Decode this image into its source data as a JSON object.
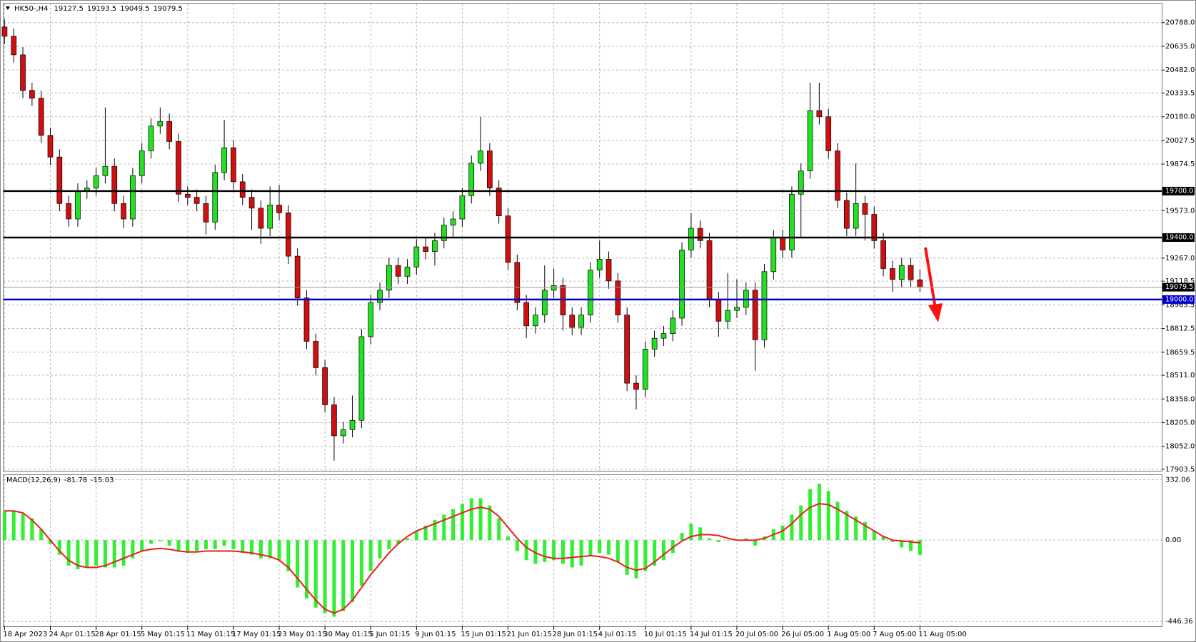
{
  "chart_data": [
    {
      "type": "candlestick",
      "title": "HK50-,H4",
      "categories": [
        "18 Apr 2023",
        null,
        null,
        null,
        null,
        "24 Apr 01:15",
        null,
        null,
        null,
        null,
        "28 Apr 01:15",
        null,
        null,
        null,
        null,
        "5 May 01:15",
        null,
        null,
        null,
        null,
        "11 May 01:15",
        null,
        null,
        null,
        null,
        "17 May 01:15",
        null,
        null,
        null,
        null,
        "23 May 01:15",
        null,
        null,
        null,
        null,
        "30 May 01:15",
        null,
        null,
        null,
        null,
        "5 Jun 01:15",
        null,
        null,
        null,
        null,
        "9 Jun 01:15",
        null,
        null,
        null,
        null,
        "15 Jun 01:15",
        null,
        null,
        null,
        null,
        "21 Jun 01:15",
        null,
        null,
        null,
        null,
        "28 Jun 01:15",
        null,
        null,
        null,
        null,
        "4 Jul 01:15",
        null,
        null,
        null,
        null,
        "10 Jul 01:15",
        null,
        null,
        null,
        null,
        "14 Jul 01:15",
        null,
        null,
        null,
        null,
        "20 Jul 05:00",
        null,
        null,
        null,
        null,
        "26 Jul 05:00",
        null,
        null,
        null,
        null,
        "1 Aug 05:00",
        null,
        null,
        null,
        null,
        "7 Aug 05:00",
        null,
        null,
        null,
        null,
        "11 Aug 05:00"
      ],
      "open": [
        20760,
        20700,
        20580,
        20350,
        20300,
        20060,
        19920,
        19620,
        19520,
        19700,
        19720,
        19800,
        19860,
        19620,
        19520,
        19800,
        19960,
        20120,
        20150,
        20020,
        19680,
        19660,
        19620,
        19500,
        19820,
        19980,
        19760,
        19660,
        19590,
        19460,
        19610,
        19560,
        19280,
        19010,
        18730,
        18560,
        18320,
        18120,
        18160,
        18220,
        18760,
        18980,
        19060,
        19220,
        19150,
        19210,
        19340,
        19310,
        19380,
        19480,
        19520,
        19670,
        19880,
        19960,
        19720,
        19540,
        19240,
        18980,
        18830,
        18900,
        19060,
        19090,
        18900,
        18820,
        18900,
        19190,
        19260,
        19120,
        18900,
        18460,
        18420,
        18680,
        18750,
        18780,
        18880,
        19320,
        19460,
        19380,
        19000,
        18860,
        18930,
        18950,
        19060,
        18740,
        19180,
        19400,
        19320,
        19680,
        19830,
        20220,
        20180,
        19960,
        19640,
        19460,
        19620,
        19550,
        19380,
        19200,
        19130,
        19220,
        19127.5
      ],
      "high": [
        20810,
        20750,
        20630,
        20400,
        20350,
        20110,
        19970,
        19670,
        19750,
        19770,
        19850,
        20240,
        19910,
        19670,
        19850,
        20010,
        20170,
        20240,
        20200,
        20070,
        19730,
        19710,
        19670,
        19870,
        20160,
        20030,
        19810,
        19710,
        19640,
        19730,
        19740,
        19610,
        19330,
        19060,
        18780,
        18610,
        18370,
        18210,
        18380,
        18810,
        19030,
        19110,
        19270,
        19270,
        19260,
        19390,
        19400,
        19430,
        19530,
        19570,
        19720,
        19930,
        20180,
        20010,
        19770,
        19590,
        19290,
        19030,
        18950,
        19220,
        19200,
        19140,
        18950,
        18950,
        19240,
        19380,
        19310,
        19170,
        18950,
        18510,
        18730,
        18800,
        18830,
        18930,
        19370,
        19560,
        19510,
        19430,
        19050,
        19170,
        19130,
        19110,
        19110,
        19230,
        19450,
        19450,
        19730,
        19880,
        20400,
        20400,
        20230,
        20010,
        19690,
        19880,
        19670,
        19600,
        19430,
        19250,
        19270,
        19270,
        19193.5
      ],
      "low": [
        20650,
        20530,
        20300,
        20250,
        20010,
        19870,
        19570,
        19470,
        19470,
        19650,
        19670,
        19750,
        19570,
        19460,
        19470,
        19750,
        19910,
        20070,
        19970,
        19630,
        19610,
        19570,
        19420,
        19450,
        19770,
        19710,
        19610,
        19450,
        19360,
        19410,
        19510,
        19230,
        18960,
        18680,
        18510,
        18270,
        17960,
        18070,
        18110,
        18170,
        18710,
        18930,
        19010,
        19100,
        19100,
        19160,
        19260,
        19220,
        19330,
        19400,
        19470,
        19620,
        19830,
        19670,
        19490,
        19190,
        18930,
        18750,
        18780,
        18850,
        19010,
        18800,
        18770,
        18770,
        18850,
        19140,
        19070,
        18850,
        18410,
        18290,
        18370,
        18630,
        18700,
        18730,
        18830,
        19270,
        19330,
        18950,
        18760,
        18810,
        18880,
        18900,
        18540,
        18690,
        19130,
        19270,
        19270,
        19400,
        19780,
        20130,
        19910,
        19590,
        19410,
        19410,
        19380,
        19330,
        19150,
        19050,
        19080,
        19080,
        19049.5
      ],
      "close": [
        20700,
        20580,
        20350,
        20300,
        20060,
        19920,
        19620,
        19520,
        19700,
        19720,
        19800,
        19860,
        19620,
        19520,
        19800,
        19960,
        20120,
        20150,
        20020,
        19680,
        19660,
        19620,
        19500,
        19820,
        19980,
        19760,
        19660,
        19590,
        19460,
        19610,
        19560,
        19280,
        19010,
        18730,
        18560,
        18320,
        18120,
        18160,
        18220,
        18760,
        18980,
        19060,
        19220,
        19150,
        19210,
        19340,
        19310,
        19380,
        19480,
        19520,
        19670,
        19880,
        19960,
        19720,
        19540,
        19240,
        18980,
        18830,
        18900,
        19060,
        19090,
        18900,
        18820,
        18900,
        19190,
        19260,
        19120,
        18900,
        18460,
        18420,
        18680,
        18750,
        18780,
        18880,
        19320,
        19460,
        19380,
        19000,
        18860,
        18930,
        18950,
        19060,
        18740,
        19180,
        19400,
        19320,
        19680,
        19830,
        20220,
        20180,
        19960,
        19640,
        19460,
        19620,
        19550,
        19380,
        19200,
        19130,
        19220,
        19127.5,
        19079.5
      ],
      "ylim": [
        17894,
        20911
      ],
      "yticks": [
        {
          "value": 20788,
          "label": "20788.0"
        },
        {
          "value": 20635,
          "label": "20635.0"
        },
        {
          "value": 20482,
          "label": "20482.0"
        },
        20333.5,
        {
          "value": 20180,
          "label": "20180.0"
        },
        20027.5,
        19874.5,
        {
          "value": 19573,
          "label": "19573.0"
        },
        {
          "value": 19267,
          "label": "19267.0"
        },
        19118.5,
        18965.5,
        18812.5,
        18659.5,
        {
          "value": 18511,
          "label": "18511.0"
        },
        {
          "value": 18358,
          "label": "18358.0"
        },
        {
          "value": 18205,
          "label": "18205.0"
        },
        {
          "value": 18052,
          "label": "18052.0"
        },
        17903.5
      ],
      "levels": [
        {
          "value": 19700,
          "label": "19700.0",
          "color": "#000000"
        },
        {
          "value": 19400,
          "label": "19400.0",
          "color": "#000000"
        },
        {
          "value": 19000,
          "label": "19000.0",
          "color": "#0000c8"
        }
      ],
      "current_price": 19079.5,
      "up_color": "#22e022",
      "down_color": "#d01010",
      "grid": true
    },
    {
      "type": "macd",
      "title": "MACD(12,26,9)",
      "histogram": [
        160,
        160,
        145,
        120,
        60,
        -20,
        -80,
        -140,
        -160,
        -150,
        -140,
        -150,
        -150,
        -140,
        -100,
        -60,
        -20,
        -5,
        -30,
        -60,
        -70,
        -60,
        -50,
        -50,
        -30,
        -50,
        -70,
        -80,
        -100,
        -100,
        -110,
        -170,
        -260,
        -320,
        -370,
        -400,
        -420,
        -390,
        -340,
        -250,
        -170,
        -100,
        -50,
        -20,
        10,
        50,
        80,
        110,
        140,
        170,
        200,
        230,
        230,
        190,
        120,
        20,
        -60,
        -110,
        -130,
        -120,
        -110,
        -130,
        -150,
        -140,
        -90,
        -70,
        -80,
        -120,
        -190,
        -210,
        -170,
        -140,
        -110,
        -70,
        40,
        90,
        70,
        10,
        -10,
        0,
        0,
        10,
        -30,
        20,
        60,
        80,
        140,
        190,
        280,
        310,
        270,
        210,
        160,
        130,
        100,
        50,
        20,
        -10,
        -40,
        -60,
        -81.78
      ],
      "signal": [
        160,
        160,
        150,
        110,
        60,
        0,
        -60,
        -110,
        -140,
        -150,
        -150,
        -140,
        -120,
        -100,
        -80,
        -60,
        -50,
        -45,
        -50,
        -60,
        -65,
        -65,
        -60,
        -60,
        -60,
        -60,
        -65,
        -70,
        -80,
        -90,
        -110,
        -150,
        -210,
        -270,
        -330,
        -380,
        -400,
        -380,
        -330,
        -260,
        -190,
        -130,
        -70,
        -20,
        20,
        50,
        70,
        90,
        110,
        130,
        150,
        170,
        180,
        170,
        130,
        70,
        10,
        -40,
        -70,
        -90,
        -100,
        -100,
        -95,
        -90,
        -85,
        -90,
        -100,
        -120,
        -150,
        -165,
        -155,
        -120,
        -80,
        -40,
        -5,
        20,
        30,
        30,
        25,
        10,
        0,
        0,
        0,
        10,
        30,
        50,
        90,
        140,
        180,
        200,
        195,
        170,
        140,
        110,
        80,
        50,
        20,
        0,
        -5,
        -10,
        -15.03
      ],
      "ylim": [
        -473,
        357
      ],
      "yticks": [
        332.06,
        {
          "value": 0,
          "label": "0.00"
        },
        -446.36
      ],
      "histogram_color": "#33ee33",
      "signal_color": "#e8201a"
    }
  ]
}
